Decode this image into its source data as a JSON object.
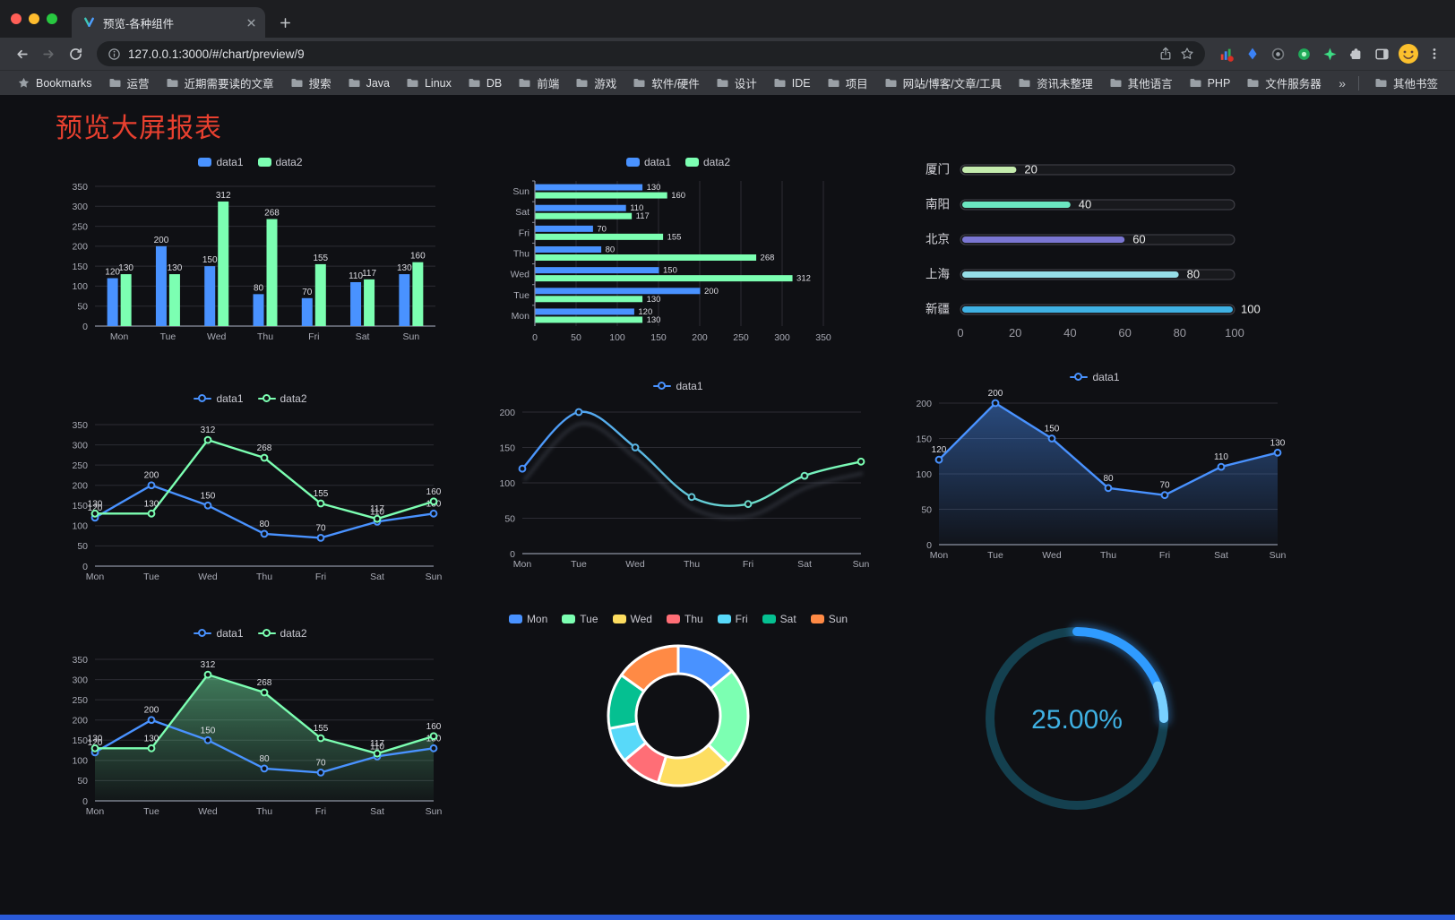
{
  "browser": {
    "tab": {
      "title": "预览-各种组件"
    },
    "address": {
      "url": "127.0.0.1:3000/#/chart/preview/9"
    },
    "bookmarks": {
      "label": "Bookmarks",
      "folders": [
        "运营",
        "近期需要读的文章",
        "搜索",
        "Java",
        "Linux",
        "DB",
        "前端",
        "游戏",
        "软件/硬件",
        "设计",
        "IDE",
        "项目",
        "网站/博客/文章/工具",
        "资讯未整理",
        "其他语言",
        "PHP",
        "文件服务器"
      ],
      "overflow": "»",
      "other": "其他书签"
    }
  },
  "page": {
    "title": "预览大屏报表",
    "title_color": "#e8402f",
    "background": "#0f1014",
    "bottom_bar_color": "#2a5ad9"
  },
  "chart_data": [
    {
      "id": "grouped-bar-chart",
      "type": "bar",
      "legend": [
        "data1",
        "data2"
      ],
      "legend_position": "top",
      "grid": true,
      "value_labels": true,
      "categories": [
        "Mon",
        "Tue",
        "Wed",
        "Thu",
        "Fri",
        "Sat",
        "Sun"
      ],
      "series": [
        {
          "name": "data1",
          "color": "#4992ff",
          "values": [
            120,
            200,
            150,
            80,
            70,
            110,
            130
          ]
        },
        {
          "name": "data2",
          "color": "#7cffb2",
          "values": [
            130,
            130,
            312,
            268,
            155,
            117,
            160
          ]
        }
      ],
      "ylim": [
        0,
        350
      ],
      "yticks": [
        0,
        50,
        100,
        150,
        200,
        250,
        300,
        350
      ]
    },
    {
      "id": "horizontal-bar-chart",
      "type": "bar-horizontal",
      "legend": [
        "data1",
        "data2"
      ],
      "legend_position": "top",
      "grid": true,
      "value_labels": true,
      "categories": [
        "Mon",
        "Tue",
        "Wed",
        "Thu",
        "Fri",
        "Sat",
        "Sun"
      ],
      "row_order_top_to_bottom": [
        "Sun",
        "Sat",
        "Fri",
        "Thu",
        "Wed",
        "Tue",
        "Mon"
      ],
      "series": [
        {
          "name": "data1",
          "color": "#4992ff",
          "values": [
            120,
            200,
            150,
            80,
            70,
            110,
            130
          ]
        },
        {
          "name": "data2",
          "color": "#7cffb2",
          "values": [
            130,
            130,
            312,
            268,
            155,
            117,
            160
          ]
        }
      ],
      "xlim": [
        0,
        350
      ],
      "xticks": [
        0,
        50,
        100,
        150,
        200,
        250,
        300,
        350
      ]
    },
    {
      "id": "city-progress-bars",
      "type": "progress-bar-list",
      "max": 100,
      "xticks": [
        0,
        20,
        40,
        60,
        80,
        100
      ],
      "rows": [
        {
          "label": "厦门",
          "value": 20,
          "color": "#c4ebad"
        },
        {
          "label": "南阳",
          "value": 40,
          "color": "#6be6c1"
        },
        {
          "label": "北京",
          "value": 60,
          "color": "#7a76d2"
        },
        {
          "label": "上海",
          "value": 80,
          "color": "#96dee8"
        },
        {
          "label": "新疆",
          "value": 100,
          "color": "#3fb1e3"
        }
      ]
    },
    {
      "id": "two-series-line-chart",
      "type": "line",
      "legend": [
        "data1",
        "data2"
      ],
      "legend_position": "top",
      "grid": true,
      "value_labels": true,
      "smooth": false,
      "categories": [
        "Mon",
        "Tue",
        "Wed",
        "Thu",
        "Fri",
        "Sat",
        "Sun"
      ],
      "series": [
        {
          "name": "data1",
          "color": "#4992ff",
          "values": [
            120,
            200,
            150,
            80,
            70,
            110,
            130
          ]
        },
        {
          "name": "data2",
          "color": "#7cffb2",
          "values": [
            130,
            130,
            312,
            268,
            155,
            117,
            160
          ]
        }
      ],
      "ylim": [
        0,
        350
      ],
      "yticks": [
        0,
        50,
        100,
        150,
        200,
        250,
        300,
        350
      ]
    },
    {
      "id": "gradient-smooth-line-chart",
      "type": "line",
      "legend": [
        "data1"
      ],
      "legend_position": "top",
      "grid": true,
      "value_labels": false,
      "smooth": true,
      "shadow": true,
      "categories": [
        "Mon",
        "Tue",
        "Wed",
        "Thu",
        "Fri",
        "Sat",
        "Sun"
      ],
      "series": [
        {
          "name": "data1",
          "color_gradient": [
            "#4992ff",
            "#7cffb2"
          ],
          "values": [
            120,
            200,
            150,
            80,
            70,
            110,
            130
          ]
        }
      ],
      "ylim": [
        0,
        200
      ],
      "yticks": [
        0,
        50,
        100,
        150,
        200
      ]
    },
    {
      "id": "area-line-chart",
      "type": "line",
      "legend": [
        "data1"
      ],
      "legend_position": "top",
      "grid": true,
      "value_labels": true,
      "smooth": false,
      "categories": [
        "Mon",
        "Tue",
        "Wed",
        "Thu",
        "Fri",
        "Sat",
        "Sun"
      ],
      "series": [
        {
          "name": "data1",
          "color": "#4992ff",
          "area": true,
          "values": [
            120,
            200,
            150,
            80,
            70,
            110,
            130
          ]
        }
      ],
      "ylim": [
        0,
        200
      ],
      "yticks": [
        0,
        50,
        100,
        150,
        200
      ]
    },
    {
      "id": "line-chart-with-green-area",
      "type": "line",
      "legend": [
        "data1",
        "data2"
      ],
      "legend_position": "top",
      "grid": true,
      "value_labels": true,
      "smooth": false,
      "categories": [
        "Mon",
        "Tue",
        "Wed",
        "Thu",
        "Fri",
        "Sat",
        "Sun"
      ],
      "series": [
        {
          "name": "data1",
          "color": "#4992ff",
          "values": [
            120,
            200,
            150,
            80,
            70,
            110,
            130
          ]
        },
        {
          "name": "data2",
          "color": "#7cffb2",
          "area": true,
          "values": [
            130,
            130,
            312,
            268,
            155,
            117,
            160
          ]
        }
      ],
      "ylim": [
        0,
        350
      ],
      "yticks": [
        0,
        50,
        100,
        150,
        200,
        250,
        300,
        350
      ]
    },
    {
      "id": "donut-chart",
      "type": "pie",
      "legend": [
        "Mon",
        "Tue",
        "Wed",
        "Thu",
        "Fri",
        "Sat",
        "Sun"
      ],
      "legend_position": "top",
      "inner_radius_ratio": 0.6,
      "border_color": "#ffffff",
      "slices": [
        {
          "label": "Mon",
          "value": 120,
          "color": "#4992ff"
        },
        {
          "label": "Tue",
          "value": 200,
          "color": "#7cffb2"
        },
        {
          "label": "Wed",
          "value": 150,
          "color": "#fddd60"
        },
        {
          "label": "Thu",
          "value": 80,
          "color": "#ff6e76"
        },
        {
          "label": "Fri",
          "value": 70,
          "color": "#58d9f9"
        },
        {
          "label": "Sat",
          "value": 110,
          "color": "#05c091"
        },
        {
          "label": "Sun",
          "value": 130,
          "color": "#ff8a45"
        }
      ]
    },
    {
      "id": "gauge-progress",
      "type": "gauge",
      "percent": 25,
      "value_label": "25.00%",
      "track_color": "#14404f",
      "progress_color": "#2f9bff",
      "tip_color": "#79d0ff",
      "text_color": "#3fb1e3"
    }
  ]
}
